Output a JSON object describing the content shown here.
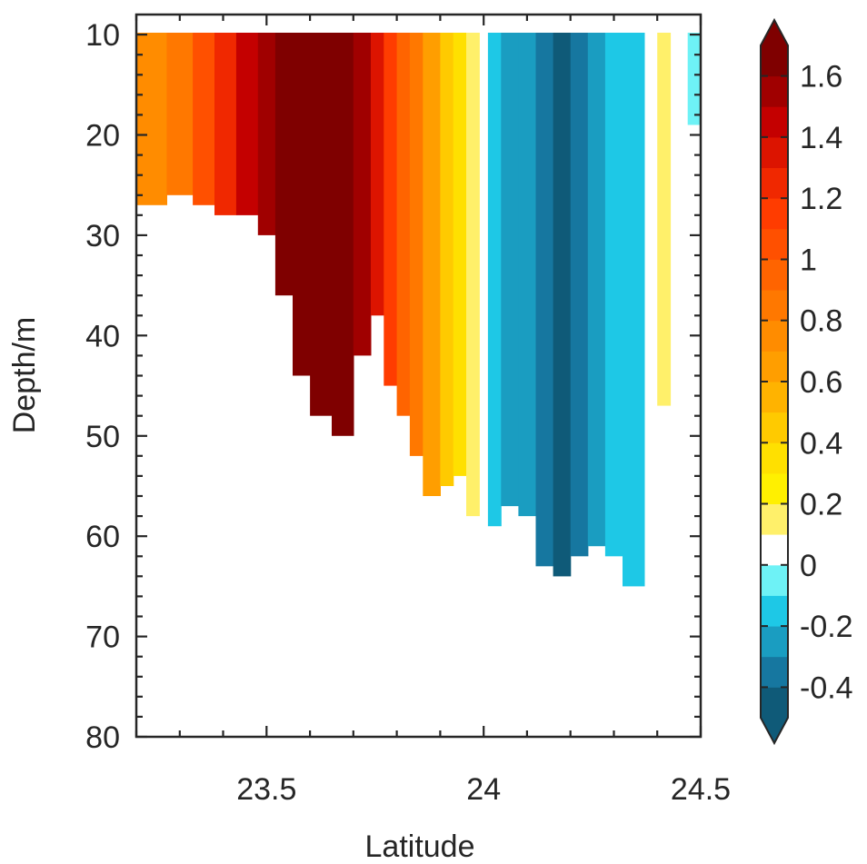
{
  "chart_data": {
    "type": "heatmap",
    "title": "",
    "xlabel": "Latitude",
    "ylabel": "Depth/m",
    "xlim": [
      23.2,
      24.5
    ],
    "ylim": [
      8,
      80
    ],
    "y_reversed": true,
    "x_ticks": [
      23.5,
      24,
      24.5
    ],
    "x_tick_labels": [
      "23.5",
      "24",
      "24.5"
    ],
    "y_ticks": [
      10,
      20,
      30,
      40,
      50,
      60,
      70,
      80
    ],
    "y_tick_labels": [
      "10",
      "20",
      "30",
      "40",
      "50",
      "60",
      "70",
      "80"
    ],
    "grid": false,
    "colorbar": {
      "range": [
        -0.5,
        1.7
      ],
      "ticks": [
        -0.4,
        -0.2,
        0,
        0.2,
        0.4,
        0.6,
        0.8,
        1,
        1.2,
        1.4,
        1.6
      ],
      "tick_labels": [
        "-0.4",
        "-0.2",
        "0",
        "0.2",
        "0.4",
        "0.6",
        "0.8",
        "1",
        "1.2",
        "1.4",
        "1.6"
      ],
      "levels": [
        {
          "min": -0.5,
          "max": -0.4,
          "color": "#0f5a78"
        },
        {
          "min": -0.4,
          "max": -0.3,
          "color": "#1677a0"
        },
        {
          "min": -0.3,
          "max": -0.2,
          "color": "#1a9dc1"
        },
        {
          "min": -0.2,
          "max": -0.1,
          "color": "#1ec8e6"
        },
        {
          "min": -0.1,
          "max": 0.0,
          "color": "#6ef2f6"
        },
        {
          "min": 0.0,
          "max": 0.1,
          "color": "#ffffff"
        },
        {
          "min": 0.1,
          "max": 0.2,
          "color": "#fff06a"
        },
        {
          "min": 0.2,
          "max": 0.3,
          "color": "#fff000"
        },
        {
          "min": 0.3,
          "max": 0.4,
          "color": "#ffe000"
        },
        {
          "min": 0.4,
          "max": 0.5,
          "color": "#ffca00"
        },
        {
          "min": 0.5,
          "max": 0.6,
          "color": "#ffb300"
        },
        {
          "min": 0.6,
          "max": 0.7,
          "color": "#ff9e00"
        },
        {
          "min": 0.7,
          "max": 0.8,
          "color": "#ff8c00"
        },
        {
          "min": 0.8,
          "max": 0.9,
          "color": "#ff7800"
        },
        {
          "min": 0.9,
          "max": 1.0,
          "color": "#ff6400"
        },
        {
          "min": 1.0,
          "max": 1.1,
          "color": "#ff5000"
        },
        {
          "min": 1.1,
          "max": 1.2,
          "color": "#ff3c00"
        },
        {
          "min": 1.2,
          "max": 1.3,
          "color": "#f02800"
        },
        {
          "min": 1.3,
          "max": 1.4,
          "color": "#dc1400"
        },
        {
          "min": 1.4,
          "max": 1.5,
          "color": "#c40000"
        },
        {
          "min": 1.5,
          "max": 1.6,
          "color": "#a00000"
        },
        {
          "min": 1.6,
          "max": 1.7,
          "color": "#7f0000"
        }
      ]
    },
    "bands": [
      {
        "x0": 23.2,
        "x1": 23.27,
        "value": 0.75,
        "max_depth": 27
      },
      {
        "x0": 23.27,
        "x1": 23.33,
        "value": 0.85,
        "max_depth": 26
      },
      {
        "x0": 23.33,
        "x1": 23.38,
        "value": 1.05,
        "max_depth": 27
      },
      {
        "x0": 23.38,
        "x1": 23.43,
        "value": 1.25,
        "max_depth": 28
      },
      {
        "x0": 23.43,
        "x1": 23.48,
        "value": 1.45,
        "max_depth": 28
      },
      {
        "x0": 23.48,
        "x1": 23.52,
        "value": 1.55,
        "max_depth": 30
      },
      {
        "x0": 23.52,
        "x1": 23.56,
        "value": 1.65,
        "max_depth": 36
      },
      {
        "x0": 23.56,
        "x1": 23.6,
        "value": 1.65,
        "max_depth": 44
      },
      {
        "x0": 23.6,
        "x1": 23.65,
        "value": 1.65,
        "max_depth": 48
      },
      {
        "x0": 23.65,
        "x1": 23.7,
        "value": 1.65,
        "max_depth": 50
      },
      {
        "x0": 23.7,
        "x1": 23.74,
        "value": 1.55,
        "max_depth": 42
      },
      {
        "x0": 23.74,
        "x1": 23.77,
        "value": 1.35,
        "max_depth": 38
      },
      {
        "x0": 23.77,
        "x1": 23.8,
        "value": 1.15,
        "max_depth": 45
      },
      {
        "x0": 23.8,
        "x1": 23.83,
        "value": 0.95,
        "max_depth": 48
      },
      {
        "x0": 23.83,
        "x1": 23.86,
        "value": 0.8,
        "max_depth": 52
      },
      {
        "x0": 23.86,
        "x1": 23.9,
        "value": 0.6,
        "max_depth": 56
      },
      {
        "x0": 23.9,
        "x1": 23.93,
        "value": 0.45,
        "max_depth": 55
      },
      {
        "x0": 23.93,
        "x1": 23.96,
        "value": 0.3,
        "max_depth": 54
      },
      {
        "x0": 23.96,
        "x1": 23.99,
        "value": 0.15,
        "max_depth": 58
      },
      {
        "x0": 23.99,
        "x1": 24.01,
        "value": 0.05,
        "max_depth": 8
      },
      {
        "x0": 24.01,
        "x1": 24.04,
        "value": -0.15,
        "max_depth": 59
      },
      {
        "x0": 24.04,
        "x1": 24.08,
        "value": -0.25,
        "max_depth": 57
      },
      {
        "x0": 24.08,
        "x1": 24.12,
        "value": -0.25,
        "max_depth": 58
      },
      {
        "x0": 24.12,
        "x1": 24.16,
        "value": -0.35,
        "max_depth": 63
      },
      {
        "x0": 24.16,
        "x1": 24.2,
        "value": -0.45,
        "max_depth": 64
      },
      {
        "x0": 24.2,
        "x1": 24.24,
        "value": -0.35,
        "max_depth": 62
      },
      {
        "x0": 24.24,
        "x1": 24.28,
        "value": -0.25,
        "max_depth": 61
      },
      {
        "x0": 24.28,
        "x1": 24.32,
        "value": -0.15,
        "max_depth": 62
      },
      {
        "x0": 24.32,
        "x1": 24.37,
        "value": -0.15,
        "max_depth": 65
      },
      {
        "x0": 24.37,
        "x1": 24.4,
        "value": 0.05,
        "max_depth": 8
      },
      {
        "x0": 24.4,
        "x1": 24.43,
        "value": 0.15,
        "max_depth": 47
      },
      {
        "x0": 24.43,
        "x1": 24.47,
        "value": 0.05,
        "max_depth": 8
      },
      {
        "x0": 24.47,
        "x1": 24.5,
        "value": -0.05,
        "max_depth": 19
      }
    ]
  }
}
